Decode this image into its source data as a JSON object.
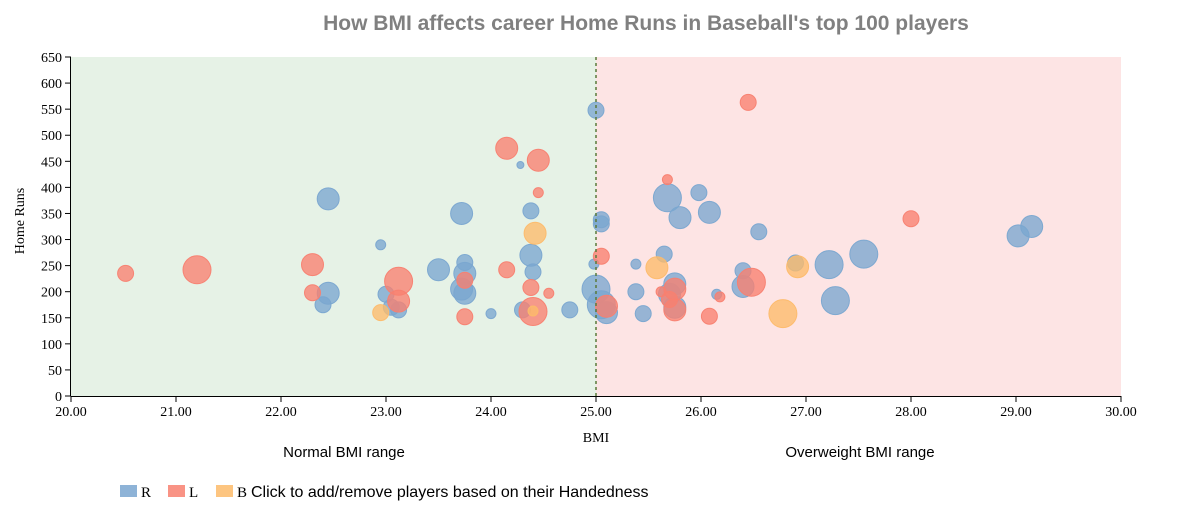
{
  "chart_data": {
    "type": "scatter",
    "title": "How BMI affects career Home Runs in Baseball's top 100 players",
    "xlabel": "BMI",
    "ylabel": "Home Runs",
    "xlim": [
      20,
      30
    ],
    "ylim": [
      0,
      650
    ],
    "xticks": [
      "20.00",
      "21.00",
      "22.00",
      "23.00",
      "24.00",
      "25.00",
      "26.00",
      "27.00",
      "28.00",
      "29.00",
      "30.00"
    ],
    "yticks": [
      "0",
      "50",
      "100",
      "150",
      "200",
      "250",
      "300",
      "350",
      "400",
      "450",
      "500",
      "550",
      "600",
      "650"
    ],
    "threshold": 25,
    "regions": [
      {
        "label": "Normal BMI range",
        "from": 20,
        "to": 25,
        "color": "#e6f2e6"
      },
      {
        "label": "Overweight BMI range",
        "from": 25,
        "to": 30,
        "color": "#fde4e4"
      }
    ],
    "legend_placement": "bottom-left",
    "legend_note": "Click to add/remove players based on their Handedness",
    "colors": {
      "R": "#7aa6d0",
      "L": "#f88070",
      "B": "#fdbb6a"
    },
    "series": [
      {
        "name": "R",
        "points": [
          [
            22.45,
            378,
            2
          ],
          [
            22.45,
            197,
            2
          ],
          [
            22.4,
            175,
            1
          ],
          [
            22.95,
            290,
            0
          ],
          [
            23.0,
            195,
            1
          ],
          [
            23.05,
            170,
            1
          ],
          [
            23.12,
            165,
            1
          ],
          [
            23.5,
            242,
            2
          ],
          [
            23.72,
            350,
            2
          ],
          [
            23.75,
            256,
            1
          ],
          [
            23.75,
            235,
            2
          ],
          [
            23.72,
            205,
            2
          ],
          [
            23.75,
            197,
            2
          ],
          [
            24.0,
            158,
            0
          ],
          [
            24.28,
            443,
            -1
          ],
          [
            24.38,
            355,
            1
          ],
          [
            24.38,
            270,
            2
          ],
          [
            24.4,
            238,
            1
          ],
          [
            24.3,
            165,
            1
          ],
          [
            24.75,
            165,
            1
          ],
          [
            25.0,
            548,
            1
          ],
          [
            25.05,
            338,
            1
          ],
          [
            25.05,
            330,
            1
          ],
          [
            24.98,
            253,
            0
          ],
          [
            25.0,
            205,
            3
          ],
          [
            25.05,
            175,
            3
          ],
          [
            25.1,
            160,
            2
          ],
          [
            25.38,
            253,
            0
          ],
          [
            25.38,
            200,
            1
          ],
          [
            25.45,
            158,
            1
          ],
          [
            25.65,
            272,
            1
          ],
          [
            25.68,
            380,
            3
          ],
          [
            25.8,
            342,
            2
          ],
          [
            25.98,
            390,
            1
          ],
          [
            26.08,
            352,
            2
          ],
          [
            25.75,
            215,
            2
          ],
          [
            25.7,
            195,
            2
          ],
          [
            25.75,
            170,
            2
          ],
          [
            26.15,
            195,
            0
          ],
          [
            26.4,
            240,
            1
          ],
          [
            26.4,
            210,
            2
          ],
          [
            26.55,
            315,
            1
          ],
          [
            26.9,
            255,
            1
          ],
          [
            27.22,
            252,
            3
          ],
          [
            27.28,
            183,
            3
          ],
          [
            27.55,
            272,
            3
          ],
          [
            29.02,
            307,
            2
          ],
          [
            29.15,
            325,
            2
          ]
        ]
      },
      {
        "name": "L",
        "points": [
          [
            20.52,
            235,
            1
          ],
          [
            21.2,
            242,
            3
          ],
          [
            22.3,
            252,
            2
          ],
          [
            22.3,
            198,
            1
          ],
          [
            23.12,
            220,
            3
          ],
          [
            23.12,
            182,
            2
          ],
          [
            23.75,
            222,
            1
          ],
          [
            23.75,
            152,
            1
          ],
          [
            24.15,
            475,
            2
          ],
          [
            24.45,
            452,
            2
          ],
          [
            24.45,
            390,
            0
          ],
          [
            24.15,
            242,
            1
          ],
          [
            24.38,
            208,
            1
          ],
          [
            24.55,
            197,
            0
          ],
          [
            24.4,
            162,
            3
          ],
          [
            25.05,
            268,
            1
          ],
          [
            25.1,
            172,
            2
          ],
          [
            25.68,
            415,
            0
          ],
          [
            25.62,
            200,
            0
          ],
          [
            25.7,
            185,
            1
          ],
          [
            25.75,
            205,
            2
          ],
          [
            25.75,
            165,
            2
          ],
          [
            26.08,
            153,
            1
          ],
          [
            26.18,
            190,
            0
          ],
          [
            26.45,
            563,
            1
          ],
          [
            26.48,
            218,
            3
          ],
          [
            28.0,
            340,
            1
          ]
        ]
      },
      {
        "name": "B",
        "points": [
          [
            22.95,
            160,
            1
          ],
          [
            24.42,
            312,
            2
          ],
          [
            24.4,
            163,
            0
          ],
          [
            25.58,
            246,
            2
          ],
          [
            26.78,
            158,
            3
          ],
          [
            26.92,
            248,
            2
          ]
        ]
      }
    ]
  }
}
